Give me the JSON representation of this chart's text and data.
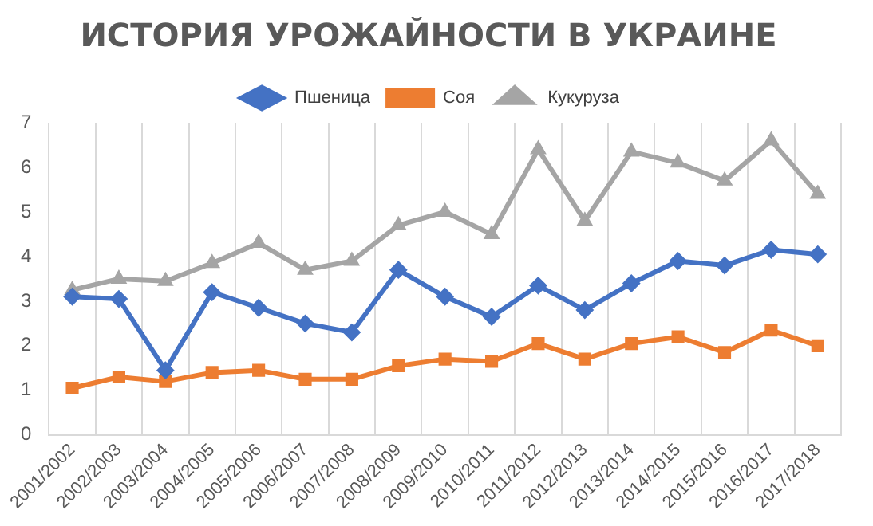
{
  "chart_data": {
    "type": "line",
    "title": "ИСТОРИЯ УРОЖАЙНОСТИ В УКРАИНЕ",
    "categories": [
      "2001/2002",
      "2002/2003",
      "2003/2004",
      "2004/2005",
      "2005/2006",
      "2006/2007",
      "2007/2008",
      "2008/2009",
      "2009/2010",
      "2010/2011",
      "2011/2012",
      "2012/2013",
      "2013/2014",
      "2014/2015",
      "2015/2016",
      "2016/2017",
      "2017/2018"
    ],
    "series": [
      {
        "name": "Пшеница",
        "color": "#4472c4",
        "marker": "diamond",
        "values": [
          3.1,
          3.05,
          1.45,
          3.2,
          2.85,
          2.5,
          2.3,
          3.7,
          3.1,
          2.65,
          3.35,
          2.8,
          3.4,
          3.9,
          3.8,
          4.15,
          4.05
        ]
      },
      {
        "name": "Соя",
        "color": "#ed7d31",
        "marker": "square",
        "values": [
          1.05,
          1.3,
          1.2,
          1.4,
          1.45,
          1.25,
          1.25,
          1.55,
          1.7,
          1.65,
          2.05,
          1.7,
          2.05,
          2.2,
          1.85,
          2.35,
          2.0
        ]
      },
      {
        "name": "Кукуруза",
        "color": "#a5a5a5",
        "marker": "triangle",
        "values": [
          3.25,
          3.5,
          3.45,
          3.85,
          4.3,
          3.7,
          3.9,
          4.7,
          5.0,
          4.5,
          6.4,
          4.8,
          6.35,
          6.1,
          5.7,
          6.6,
          5.4
        ]
      }
    ],
    "ylim": [
      0,
      7
    ],
    "yticks": [
      0,
      1,
      2,
      3,
      4,
      5,
      6,
      7
    ],
    "grid": "x",
    "legend": "top",
    "line_style": "solid"
  }
}
